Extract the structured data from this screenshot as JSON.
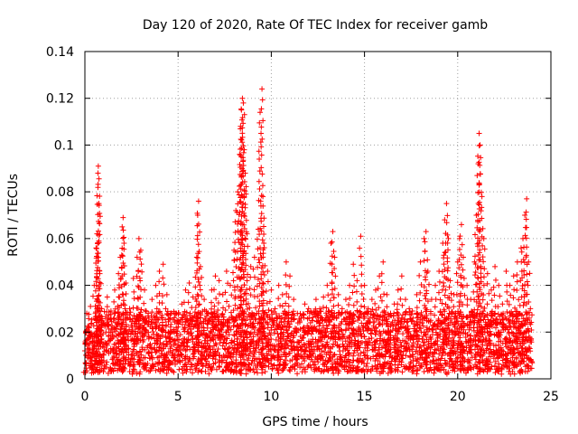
{
  "chart_data": {
    "type": "scatter",
    "title": "Day 120 of 2020, Rate Of TEC Index for receiver gamb",
    "xlabel": "GPS time / hours",
    "ylabel": "ROTI / TECUs",
    "xlim": [
      0,
      25
    ],
    "ylim": [
      0,
      0.14
    ],
    "xticks": [
      "0",
      "5",
      "10",
      "15",
      "20",
      "25"
    ],
    "yticks": [
      "0",
      "0.02",
      "0.04",
      "0.06",
      "0.08",
      "0.1",
      "0.12",
      "0.14"
    ],
    "marker": "+",
    "color": "#ff0000",
    "grid": true,
    "series": [
      {
        "name": "ROTI",
        "points": [
          [
            0.0,
            0.012
          ],
          [
            0.1,
            0.028
          ],
          [
            0.2,
            0.022
          ],
          [
            0.3,
            0.031
          ],
          [
            0.4,
            0.018
          ],
          [
            0.5,
            0.04
          ],
          [
            0.6,
            0.056
          ],
          [
            0.65,
            0.062
          ],
          [
            0.7,
            0.088
          ],
          [
            0.72,
            0.091
          ],
          [
            0.75,
            0.075
          ],
          [
            0.8,
            0.045
          ],
          [
            0.9,
            0.03
          ],
          [
            1.0,
            0.024
          ],
          [
            1.2,
            0.035
          ],
          [
            1.4,
            0.029
          ],
          [
            1.6,
            0.038
          ],
          [
            1.8,
            0.045
          ],
          [
            1.9,
            0.052
          ],
          [
            2.0,
            0.065
          ],
          [
            2.05,
            0.069
          ],
          [
            2.1,
            0.058
          ],
          [
            2.2,
            0.041
          ],
          [
            2.4,
            0.03
          ],
          [
            2.6,
            0.043
          ],
          [
            2.8,
            0.052
          ],
          [
            2.9,
            0.06
          ],
          [
            3.0,
            0.055
          ],
          [
            3.2,
            0.038
          ],
          [
            3.4,
            0.028
          ],
          [
            3.6,
            0.034
          ],
          [
            3.8,
            0.04
          ],
          [
            4.0,
            0.046
          ],
          [
            4.2,
            0.049
          ],
          [
            4.4,
            0.036
          ],
          [
            4.6,
            0.028
          ],
          [
            4.8,
            0.02
          ],
          [
            5.0,
            0.025
          ],
          [
            5.2,
            0.032
          ],
          [
            5.4,
            0.038
          ],
          [
            5.6,
            0.041
          ],
          [
            5.8,
            0.035
          ],
          [
            6.0,
            0.052
          ],
          [
            6.05,
            0.07
          ],
          [
            6.1,
            0.076
          ],
          [
            6.2,
            0.048
          ],
          [
            6.4,
            0.034
          ],
          [
            6.6,
            0.028
          ],
          [
            6.8,
            0.038
          ],
          [
            7.0,
            0.044
          ],
          [
            7.2,
            0.042
          ],
          [
            7.4,
            0.036
          ],
          [
            7.6,
            0.046
          ],
          [
            7.8,
            0.04
          ],
          [
            8.0,
            0.055
          ],
          [
            8.1,
            0.072
          ],
          [
            8.2,
            0.08
          ],
          [
            8.3,
            0.096
          ],
          [
            8.35,
            0.108
          ],
          [
            8.4,
            0.115
          ],
          [
            8.45,
            0.12
          ],
          [
            8.5,
            0.118
          ],
          [
            8.55,
            0.098
          ],
          [
            8.6,
            0.088
          ],
          [
            8.7,
            0.062
          ],
          [
            8.9,
            0.048
          ],
          [
            9.1,
            0.052
          ],
          [
            9.3,
            0.064
          ],
          [
            9.4,
            0.114
          ],
          [
            9.5,
            0.124
          ],
          [
            9.55,
            0.078
          ],
          [
            9.6,
            0.058
          ],
          [
            9.8,
            0.046
          ],
          [
            10.0,
            0.038
          ],
          [
            10.2,
            0.03
          ],
          [
            10.4,
            0.04
          ],
          [
            10.6,
            0.036
          ],
          [
            10.8,
            0.05
          ],
          [
            11.0,
            0.044
          ],
          [
            11.2,
            0.034
          ],
          [
            11.4,
            0.028
          ],
          [
            11.6,
            0.026
          ],
          [
            11.8,
            0.032
          ],
          [
            12.0,
            0.03
          ],
          [
            12.2,
            0.025
          ],
          [
            12.4,
            0.034
          ],
          [
            12.6,
            0.03
          ],
          [
            12.8,
            0.035
          ],
          [
            13.0,
            0.04
          ],
          [
            13.2,
            0.058
          ],
          [
            13.3,
            0.063
          ],
          [
            13.4,
            0.052
          ],
          [
            13.6,
            0.036
          ],
          [
            13.8,
            0.03
          ],
          [
            14.0,
            0.034
          ],
          [
            14.2,
            0.04
          ],
          [
            14.4,
            0.049
          ],
          [
            14.6,
            0.042
          ],
          [
            14.8,
            0.061
          ],
          [
            15.0,
            0.04
          ],
          [
            15.2,
            0.03
          ],
          [
            15.4,
            0.034
          ],
          [
            15.6,
            0.038
          ],
          [
            15.8,
            0.044
          ],
          [
            16.0,
            0.05
          ],
          [
            16.2,
            0.036
          ],
          [
            16.4,
            0.028
          ],
          [
            16.6,
            0.032
          ],
          [
            16.8,
            0.038
          ],
          [
            17.0,
            0.044
          ],
          [
            17.2,
            0.034
          ],
          [
            17.4,
            0.03
          ],
          [
            17.6,
            0.026
          ],
          [
            17.8,
            0.036
          ],
          [
            18.0,
            0.05
          ],
          [
            18.2,
            0.06
          ],
          [
            18.3,
            0.063
          ],
          [
            18.4,
            0.046
          ],
          [
            18.6,
            0.034
          ],
          [
            18.8,
            0.04
          ],
          [
            19.0,
            0.046
          ],
          [
            19.2,
            0.058
          ],
          [
            19.3,
            0.068
          ],
          [
            19.4,
            0.075
          ],
          [
            19.5,
            0.06
          ],
          [
            19.6,
            0.042
          ],
          [
            19.8,
            0.036
          ],
          [
            20.0,
            0.05
          ],
          [
            20.1,
            0.06
          ],
          [
            20.2,
            0.066
          ],
          [
            20.3,
            0.052
          ],
          [
            20.5,
            0.04
          ],
          [
            20.7,
            0.034
          ],
          [
            20.9,
            0.05
          ],
          [
            21.0,
            0.07
          ],
          [
            21.1,
            0.092
          ],
          [
            21.15,
            0.105
          ],
          [
            21.2,
            0.1
          ],
          [
            21.3,
            0.078
          ],
          [
            21.4,
            0.06
          ],
          [
            21.6,
            0.045
          ],
          [
            21.8,
            0.038
          ],
          [
            22.0,
            0.048
          ],
          [
            22.2,
            0.04
          ],
          [
            22.4,
            0.032
          ],
          [
            22.6,
            0.046
          ],
          [
            22.8,
            0.04
          ],
          [
            23.0,
            0.044
          ],
          [
            23.2,
            0.05
          ],
          [
            23.4,
            0.056
          ],
          [
            23.5,
            0.06
          ],
          [
            23.6,
            0.07
          ],
          [
            23.7,
            0.077
          ],
          [
            23.8,
            0.05
          ],
          [
            23.9,
            0.03
          ]
        ]
      }
    ]
  }
}
